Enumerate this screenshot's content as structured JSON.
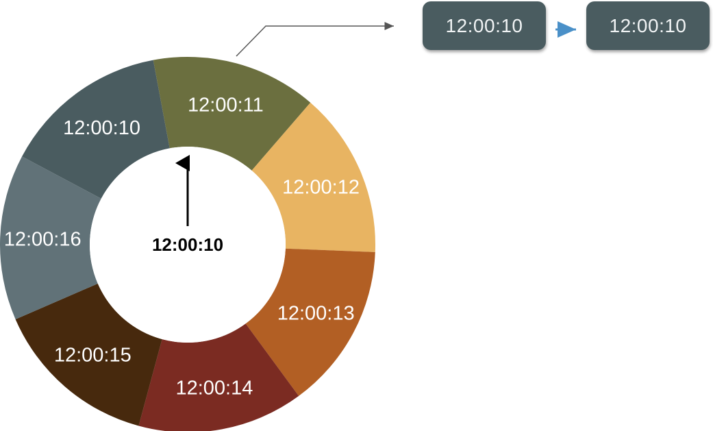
{
  "ring": {
    "segments": [
      {
        "label": "12:00:10",
        "color": "#4a5c60"
      },
      {
        "label": "12:00:11",
        "color": "#6b6f3f"
      },
      {
        "label": "12:00:12",
        "color": "#e8b462"
      },
      {
        "label": "12:00:13",
        "color": "#b25f24"
      },
      {
        "label": "12:00:14",
        "color": "#7b2b22"
      },
      {
        "label": "12:00:15",
        "color": "#47290d"
      },
      {
        "label": "12:00:16",
        "color": "#617278"
      }
    ],
    "pointer_label": "12:00:10"
  },
  "queue": {
    "items": [
      {
        "label": "12:00:10"
      },
      {
        "label": "12:00:10"
      }
    ],
    "arrow_color": "#4a90c8"
  }
}
